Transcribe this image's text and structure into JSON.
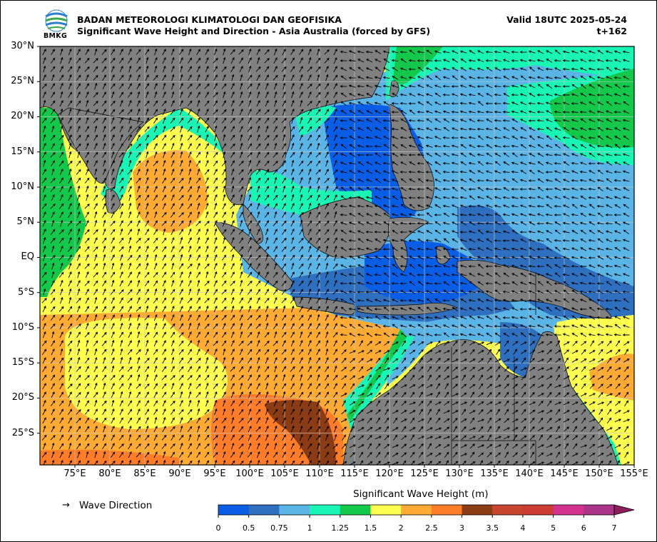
{
  "header": {
    "org": "BADAN METEOROLOGI KLIMATOLOGI DAN GEOFISIKA",
    "title": "Significant Wave Height and Direction - Asia Australia (forced by GFS)",
    "valid": "Valid 18UTC 2025-05-24",
    "lead": "t+162",
    "logo_text": "BMKG"
  },
  "axes": {
    "lat_labels": [
      "30°N",
      "25°N",
      "20°N",
      "15°N",
      "10°N",
      "5°N",
      "EQ",
      "5°S",
      "10°S",
      "15°S",
      "20°S",
      "25°S"
    ],
    "lon_labels": [
      "75°E",
      "80°E",
      "85°E",
      "90°E",
      "95°E",
      "100°E",
      "105°E",
      "110°E",
      "115°E",
      "120°E",
      "125°E",
      "130°E",
      "135°E",
      "140°E",
      "145°E",
      "150°E",
      "155°E"
    ],
    "lon_range": [
      70,
      155
    ],
    "lat_range": [
      -29.5,
      30
    ]
  },
  "legend": {
    "arrow_symbol": "→",
    "direction_label": "Wave Direction",
    "colorbar_title": "Significant Wave Height (m)",
    "ticks": [
      "0",
      "0.5",
      "0.75",
      "1",
      "1.25",
      "1.5",
      "2",
      "2.5",
      "3",
      "3.5",
      "4",
      "5",
      "6",
      "7"
    ],
    "colors": [
      "#0a5ee6",
      "#2f6fbf",
      "#5ab4e6",
      "#19f5b4",
      "#14c84b",
      "#ffff50",
      "#ffaa32",
      "#ff7d28",
      "#8c3c14",
      "#c8462d",
      "#cd3c32",
      "#d2328c",
      "#aa3287"
    ]
  },
  "colors": {
    "land": "#808080",
    "grid": "#c8c8c8",
    "arrow": "#000000"
  }
}
